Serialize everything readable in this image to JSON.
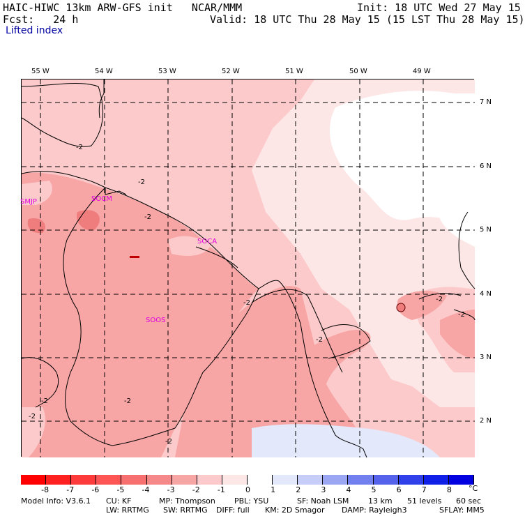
{
  "header": {
    "line1_left": "HAIC-HIWC 13km ARW-GFS init   NCAR/MMM",
    "line1_right": "Init: 18 UTC Wed 27 May 15",
    "line2_left": "Fcst:   24 h",
    "line2_right": "Valid: 18 UTC Thu 28 May 15 (15 LST Thu 28 May 15)",
    "field": "Lifted index"
  },
  "map": {
    "lon_labels": [
      "55 W",
      "54 W",
      "53 W",
      "52 W",
      "51 W",
      "50 W",
      "49 W"
    ],
    "lat_labels": [
      "7 N",
      "6 N",
      "5 N",
      "4 N",
      "3 N",
      "2 N"
    ],
    "stations": [
      "SMJP",
      "SOCM",
      "SOCA",
      "SOOS"
    ],
    "contour_label": "-2",
    "colors": {
      "lightest_pink": "#fde6e6",
      "light_pink": "#fccaca",
      "mid_pink": "#f7a5a5",
      "dark_pink": "#f07d7d",
      "white": "#ffffff",
      "light_blue": "#e4e8fb"
    }
  },
  "colorbar": {
    "unit": "°C",
    "ticks": [
      "-8",
      "-7",
      "-6",
      "-5",
      "-4",
      "-3",
      "-2",
      "-1",
      "0",
      "1",
      "2",
      "3",
      "4",
      "5",
      "6",
      "7",
      "8"
    ],
    "colors": [
      "#ff0000",
      "#ff2020",
      "#ff3a3a",
      "#ff5555",
      "#f77070",
      "#f58989",
      "#f7a5a5",
      "#fccaca",
      "#fde6e6",
      "#ffffff",
      "#e4e8fb",
      "#c6cdf8",
      "#9aa6f3",
      "#7280ef",
      "#5563ec",
      "#3040ea",
      "#1020e8",
      "#0000e0"
    ]
  },
  "footer": {
    "line1_left": "Model Info: V3.6.1",
    "line1_cu": "CU: KF",
    "line1_mp": "MP: Thompson",
    "line1_pbl": "PBL: YSU",
    "line1_sf": "SF: Noah LSM",
    "line1_res": "13 km",
    "line1_lev": "51 levels",
    "line1_dt": "60 sec",
    "line2_lw": "LW: RRTMG",
    "line2_sw": "SW: RRTMG",
    "line2_diff": "DIFF: full",
    "line2_km": "KM: 2D Smagor",
    "line2_damp": "DAMP: Rayleigh3",
    "line2_sflay": "SFLAY: MM5"
  }
}
